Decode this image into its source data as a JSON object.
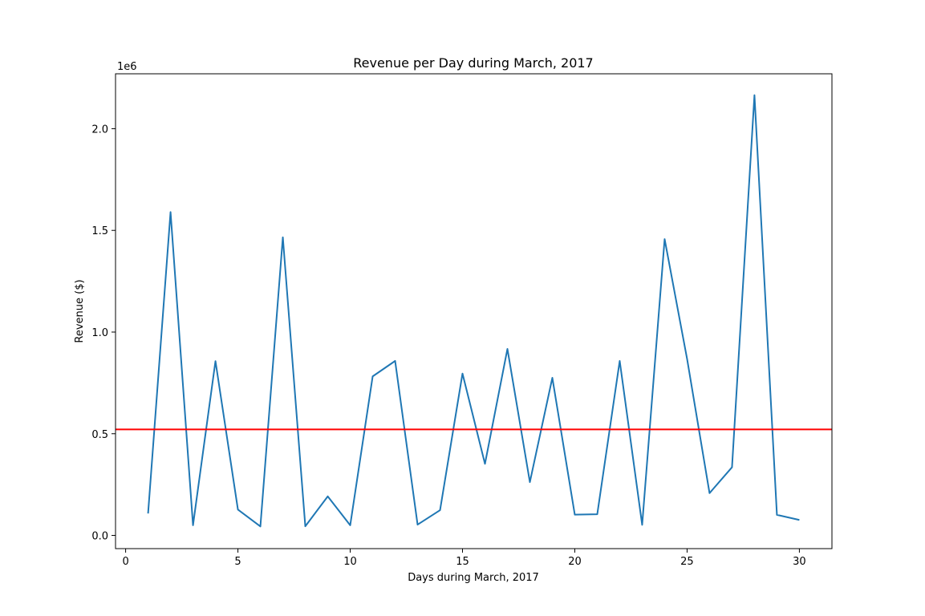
{
  "chart_data": {
    "type": "line",
    "title": "Revenue per Day during March, 2017",
    "xlabel": "Days during March, 2017",
    "ylabel": "Revenue ($)",
    "y_offset_label": "1e6",
    "xlim": [
      -0.45,
      31.45
    ],
    "ylim": [
      -65000,
      2270000
    ],
    "x_ticks": [
      0,
      5,
      10,
      15,
      20,
      25,
      30
    ],
    "y_ticks": [
      0,
      500000,
      1000000,
      1500000,
      2000000
    ],
    "y_tick_labels": [
      "0.0",
      "0.5",
      "1.0",
      "1.5",
      "2.0"
    ],
    "grid": false,
    "series": [
      {
        "color": "#1f77b4",
        "x": [
          1,
          2,
          3,
          4,
          5,
          6,
          7,
          8,
          9,
          10,
          11,
          12,
          13,
          14,
          15,
          16,
          17,
          18,
          19,
          20,
          21,
          22,
          23,
          24,
          25,
          26,
          27,
          28,
          29,
          30
        ],
        "values": [
          108000,
          1590000,
          50000,
          857000,
          127000,
          44000,
          1466000,
          45000,
          192000,
          50000,
          782000,
          858000,
          53000,
          124000,
          796000,
          352000,
          917000,
          262000,
          775000,
          102000,
          104000,
          858000,
          52000,
          1457000,
          868000,
          208000,
          335000,
          2165000,
          101000,
          76000
        ]
      }
    ],
    "reference_lines": [
      {
        "axis": "y",
        "value": 521000,
        "color": "#ff0000"
      }
    ]
  }
}
